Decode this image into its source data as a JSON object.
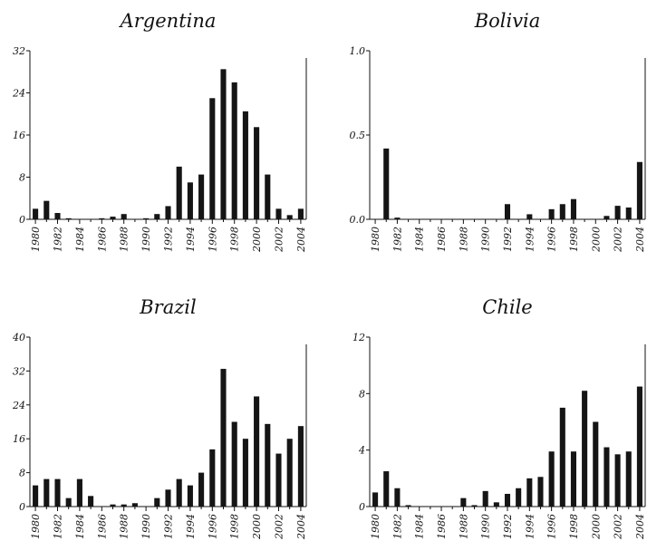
{
  "chart_data": [
    {
      "type": "bar",
      "title": "Argentina",
      "categories": [
        "1980",
        "1981",
        "1982",
        "1983",
        "1984",
        "1985",
        "1986",
        "1987",
        "1988",
        "1989",
        "1990",
        "1991",
        "1992",
        "1993",
        "1994",
        "1995",
        "1996",
        "1997",
        "1998",
        "1999",
        "2000",
        "2001",
        "2002",
        "2003",
        "2004"
      ],
      "values": [
        2,
        3.5,
        1.2,
        0.2,
        0,
        0,
        0.2,
        0.5,
        1,
        0,
        0.2,
        1,
        2.5,
        10,
        7,
        8.5,
        23,
        28.5,
        26,
        20.5,
        17.5,
        8.5,
        2,
        0.8,
        2
      ],
      "xticks": [
        "1980",
        "1982",
        "1984",
        "1986",
        "1988",
        "1990",
        "1992",
        "1994",
        "1996",
        "1998",
        "2000",
        "2002",
        "2004"
      ],
      "yticks": [
        "0",
        "8",
        "16",
        "24",
        "32"
      ],
      "ylim": [
        0,
        32
      ]
    },
    {
      "type": "bar",
      "title": "Bolivia",
      "categories": [
        "1980",
        "1981",
        "1982",
        "1983",
        "1984",
        "1985",
        "1986",
        "1987",
        "1988",
        "1989",
        "1990",
        "1991",
        "1992",
        "1993",
        "1994",
        "1995",
        "1996",
        "1997",
        "1998",
        "1999",
        "2000",
        "2001",
        "2002",
        "2003",
        "2004"
      ],
      "values": [
        0,
        0.42,
        0.01,
        0,
        0,
        0,
        0,
        0,
        0,
        0,
        0,
        0,
        0.09,
        0,
        0.03,
        0,
        0.06,
        0.09,
        0.12,
        0,
        0,
        0.02,
        0.08,
        0.07,
        0.34
      ],
      "xticks": [
        "1980",
        "1982",
        "1984",
        "1986",
        "1988",
        "1990",
        "1992",
        "1994",
        "1996",
        "1998",
        "2000",
        "2002",
        "2004"
      ],
      "yticks": [
        "0.0",
        "0.5",
        "1.0"
      ],
      "ylim": [
        0,
        1.0
      ]
    },
    {
      "type": "bar",
      "title": "Brazil",
      "categories": [
        "1980",
        "1981",
        "1982",
        "1983",
        "1984",
        "1985",
        "1986",
        "1987",
        "1988",
        "1989",
        "1990",
        "1991",
        "1992",
        "1993",
        "1994",
        "1995",
        "1996",
        "1997",
        "1998",
        "1999",
        "2000",
        "2001",
        "2002",
        "2003",
        "2004"
      ],
      "values": [
        5,
        6.5,
        6.5,
        2,
        6.5,
        2.5,
        0,
        0.5,
        0.5,
        0.8,
        0,
        2,
        4,
        6.5,
        5,
        8,
        13.5,
        32.5,
        20,
        16,
        26,
        19.5,
        12.5,
        16,
        19
      ],
      "xticks": [
        "1980",
        "1982",
        "1984",
        "1986",
        "1988",
        "1990",
        "1992",
        "1994",
        "1996",
        "1998",
        "2000",
        "2002",
        "2004"
      ],
      "yticks": [
        "0",
        "8",
        "16",
        "24",
        "32",
        "40"
      ],
      "ylim": [
        0,
        40
      ]
    },
    {
      "type": "bar",
      "title": "Chile",
      "categories": [
        "1980",
        "1981",
        "1982",
        "1983",
        "1984",
        "1985",
        "1986",
        "1987",
        "1988",
        "1989",
        "1990",
        "1991",
        "1992",
        "1993",
        "1994",
        "1995",
        "1996",
        "1997",
        "1998",
        "1999",
        "2000",
        "2001",
        "2002",
        "2003",
        "2004"
      ],
      "values": [
        1,
        2.5,
        1.3,
        0.1,
        0,
        0,
        0,
        0,
        0.6,
        0.1,
        1.1,
        0.3,
        0.9,
        1.3,
        2,
        2.1,
        3.9,
        7,
        3.9,
        8.2,
        6,
        4.2,
        3.7,
        3.9,
        8.5
      ],
      "xticks": [
        "1980",
        "1982",
        "1984",
        "1986",
        "1988",
        "1990",
        "1992",
        "1994",
        "1996",
        "1998",
        "2000",
        "2002",
        "2004"
      ],
      "yticks": [
        "0",
        "4",
        "8",
        "12"
      ],
      "ylim": [
        0,
        12
      ]
    }
  ]
}
